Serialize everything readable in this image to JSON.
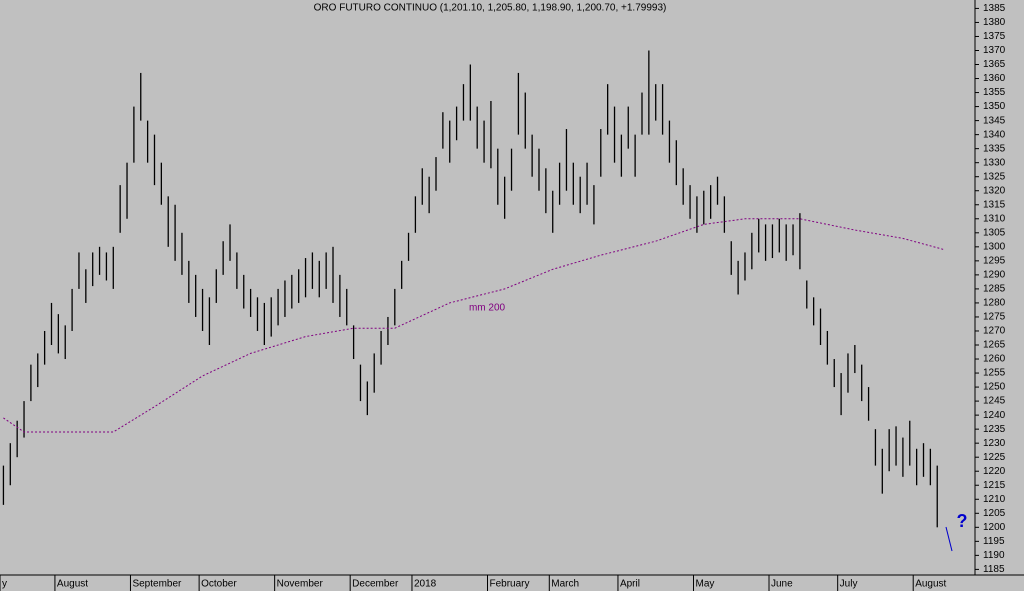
{
  "chart_data": {
    "type": "ohlc",
    "title": "ORO FUTURO CONTINUO (1,201.10, 1,205.80, 1,198.90, 1,200.70, +1.79993)",
    "annotation": "?",
    "categories": [
      "y",
      null,
      null,
      null,
      null,
      null,
      null,
      null,
      "August",
      null,
      null,
      null,
      null,
      null,
      null,
      null,
      null,
      null,
      null,
      "September",
      null,
      null,
      null,
      null,
      null,
      null,
      null,
      null,
      null,
      "October",
      null,
      null,
      null,
      null,
      null,
      null,
      null,
      null,
      null,
      null,
      "November",
      null,
      null,
      null,
      null,
      null,
      null,
      null,
      null,
      null,
      null,
      "December",
      null,
      null,
      null,
      null,
      null,
      null,
      null,
      null,
      "2018",
      null,
      null,
      null,
      null,
      null,
      null,
      null,
      null,
      null,
      null,
      "February",
      null,
      null,
      null,
      null,
      null,
      null,
      null,
      null,
      "March",
      null,
      null,
      null,
      null,
      null,
      null,
      null,
      null,
      null,
      "April",
      null,
      null,
      null,
      null,
      null,
      null,
      null,
      null,
      null,
      null,
      "May",
      null,
      null,
      null,
      null,
      null,
      null,
      null,
      null,
      null,
      null,
      "June",
      null,
      null,
      null,
      null,
      null,
      null,
      null,
      null,
      null,
      "July",
      null,
      null,
      null,
      null,
      null,
      null,
      null,
      null,
      null,
      null,
      "August",
      null,
      null,
      null,
      null,
      null,
      null,
      null,
      null
    ],
    "low": [
      1208,
      1215,
      1225,
      1232,
      1245,
      1250,
      1258,
      1265,
      1262,
      1260,
      1270,
      1285,
      1280,
      1286,
      1290,
      1288,
      1285,
      1305,
      1310,
      1330,
      1345,
      1330,
      1322,
      1315,
      1300,
      1295,
      1290,
      1280,
      1275,
      1270,
      1265,
      1280,
      1290,
      1295,
      1285,
      1278,
      1275,
      1270,
      1265,
      1268,
      1272,
      1275,
      1278,
      1280,
      1282,
      1285,
      1282,
      1285,
      1280,
      1275,
      1272,
      1260,
      1245,
      1240,
      1248,
      1258,
      1265,
      1272,
      1285,
      1295,
      1305,
      1315,
      1312,
      1320,
      1335,
      1330,
      1338,
      1345,
      1345,
      1335,
      1330,
      1328,
      1315,
      1310,
      1320,
      1340,
      1335,
      1325,
      1320,
      1312,
      1305,
      1315,
      1320,
      1315,
      1312,
      1315,
      1308,
      1325,
      1340,
      1330,
      1325,
      1335,
      1325,
      1340,
      1340,
      1345,
      1340,
      1330,
      1322,
      1315,
      1310,
      1305,
      1308,
      1310,
      1315,
      1305,
      1290,
      1283,
      1288,
      1292,
      1298,
      1295,
      1296,
      1298,
      1295,
      1297,
      1292,
      1278,
      1272,
      1265,
      1258,
      1250,
      1240,
      1248,
      1255,
      1245,
      1238,
      1222,
      1212,
      1220,
      1222,
      1218,
      1222,
      1215,
      1218,
      1215,
      1200,
      null,
      null,
      null,
      null,
      null
    ],
    "high": [
      1222,
      1230,
      1238,
      1245,
      1258,
      1262,
      1270,
      1280,
      1276,
      1272,
      1285,
      1298,
      1292,
      1298,
      1300,
      1298,
      1300,
      1322,
      1330,
      1350,
      1362,
      1345,
      1340,
      1330,
      1318,
      1315,
      1305,
      1295,
      1290,
      1285,
      1282,
      1292,
      1302,
      1308,
      1298,
      1290,
      1285,
      1282,
      1280,
      1282,
      1285,
      1288,
      1290,
      1292,
      1296,
      1298,
      1295,
      1298,
      1300,
      1290,
      1285,
      1272,
      1258,
      1252,
      1262,
      1270,
      1275,
      1285,
      1295,
      1305,
      1318,
      1328,
      1325,
      1332,
      1348,
      1345,
      1350,
      1358,
      1365,
      1350,
      1345,
      1352,
      1335,
      1325,
      1335,
      1362,
      1355,
      1340,
      1335,
      1328,
      1320,
      1330,
      1342,
      1330,
      1325,
      1330,
      1322,
      1342,
      1358,
      1350,
      1340,
      1350,
      1340,
      1355,
      1370,
      1358,
      1358,
      1345,
      1338,
      1328,
      1322,
      1318,
      1320,
      1322,
      1325,
      1318,
      1302,
      1295,
      1298,
      1305,
      1310,
      1308,
      1308,
      1310,
      1308,
      1308,
      1312,
      1288,
      1282,
      1278,
      1270,
      1260,
      1255,
      1262,
      1265,
      1258,
      1250,
      1235,
      1228,
      1235,
      1236,
      1232,
      1238,
      1228,
      1230,
      1228,
      1222,
      null,
      null,
      null,
      null,
      null
    ],
    "bar_color": "#000000",
    "moving_average": {
      "name": "mm 200",
      "color": "#800080",
      "x": [
        0,
        3,
        16,
        22,
        29,
        36,
        44,
        51,
        57,
        65,
        73,
        80,
        87,
        95,
        102,
        108,
        116,
        124,
        131,
        137
      ],
      "values": [
        1239,
        1234,
        1234,
        1243,
        1254,
        1262,
        1268,
        1271,
        1271,
        1280,
        1285,
        1292,
        1297,
        1302,
        1308,
        1310,
        1310,
        1306,
        1303,
        1299
      ]
    },
    "ylim": [
      1183,
      1388
    ],
    "yticks": [
      1185,
      1190,
      1195,
      1200,
      1205,
      1210,
      1215,
      1220,
      1225,
      1230,
      1235,
      1240,
      1245,
      1250,
      1255,
      1260,
      1265,
      1270,
      1275,
      1280,
      1285,
      1290,
      1295,
      1300,
      1305,
      1310,
      1315,
      1320,
      1325,
      1330,
      1335,
      1340,
      1345,
      1350,
      1355,
      1360,
      1365,
      1370,
      1375,
      1380,
      1385
    ]
  }
}
